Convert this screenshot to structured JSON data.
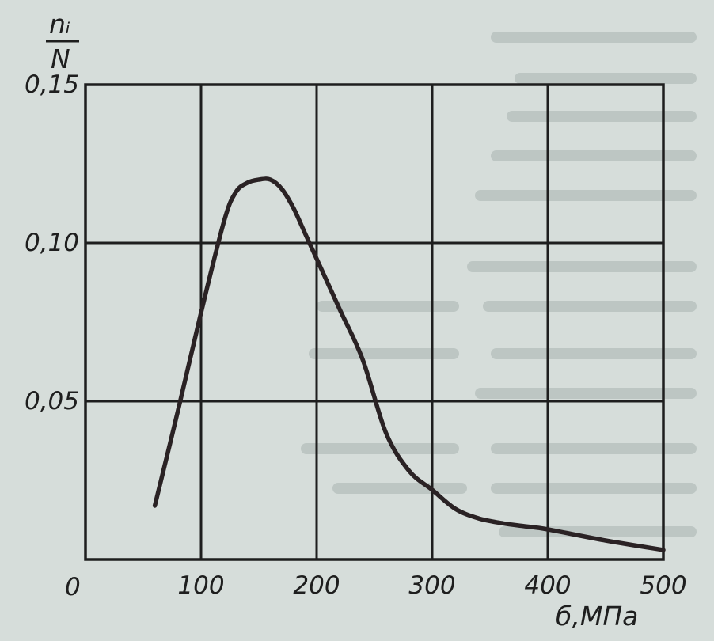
{
  "chart_data": {
    "type": "line",
    "title": "",
    "xlabel": "б,МПа",
    "ylabel_numerator": "nᵢ",
    "ylabel_denominator": "N",
    "xlim": [
      0,
      500
    ],
    "ylim": [
      0,
      0.15
    ],
    "x_ticks": [
      100,
      200,
      300,
      400,
      500
    ],
    "y_ticks": [
      0.05,
      0.1,
      0.15
    ],
    "x_tick_labels": [
      "100",
      "200",
      "300",
      "400",
      "500"
    ],
    "y_tick_labels": [
      "0,05",
      "0,10",
      "0,15"
    ],
    "origin_label": "0",
    "grid": true,
    "series": [
      {
        "x": [
          60,
          80,
          100,
          120,
          130,
          140,
          150,
          160,
          170,
          180,
          190,
          200,
          220,
          240,
          260,
          280,
          300,
          320,
          340,
          360,
          380,
          400,
          450,
          500
        ],
        "y": [
          0.017,
          0.047,
          0.078,
          0.107,
          0.116,
          0.119,
          0.12,
          0.12,
          0.117,
          0.111,
          0.103,
          0.095,
          0.079,
          0.063,
          0.04,
          0.028,
          0.022,
          0.016,
          0.013,
          0.0115,
          0.0105,
          0.0095,
          0.006,
          0.003
        ]
      }
    ]
  }
}
